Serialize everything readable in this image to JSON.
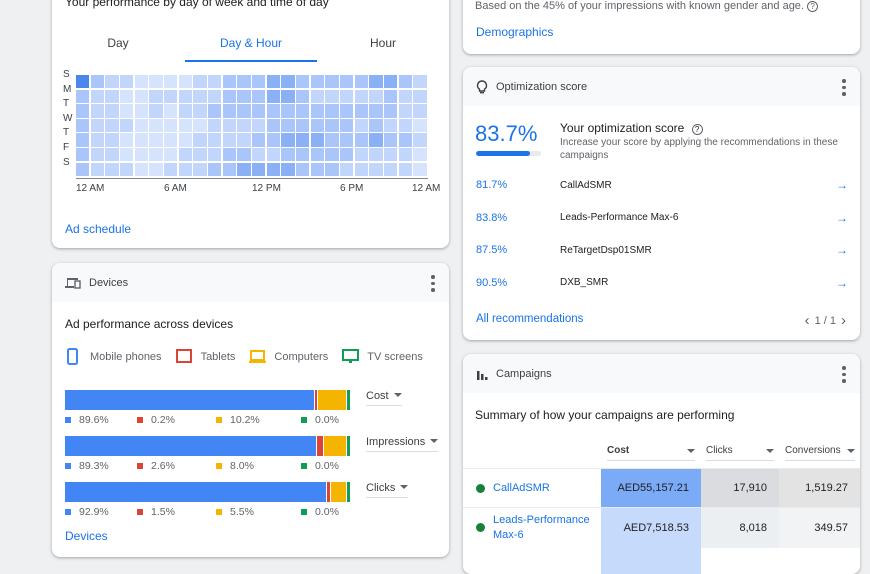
{
  "performance": {
    "title": "Your performance by day of week and time of day",
    "tabs": [
      "Day",
      "Day & Hour",
      "Hour"
    ],
    "active_tab": "Day & Hour",
    "days": [
      "S",
      "M",
      "T",
      "W",
      "T",
      "F",
      "S"
    ],
    "ticks": [
      "12 AM",
      "6 AM",
      "12 PM",
      "6 PM",
      "12 AM"
    ],
    "heatmap_levels": [
      [
        5,
        3,
        2,
        2,
        1,
        1,
        1,
        1,
        2,
        2,
        3,
        3,
        3,
        4,
        4,
        3,
        3,
        3,
        3,
        3,
        4,
        4,
        3,
        2
      ],
      [
        3,
        2,
        2,
        1,
        1,
        2,
        2,
        2,
        2,
        2,
        3,
        3,
        3,
        4,
        4,
        3,
        2,
        2,
        2,
        2,
        2,
        3,
        2,
        2
      ],
      [
        3,
        2,
        2,
        1,
        1,
        2,
        1,
        2,
        2,
        3,
        3,
        3,
        3,
        3,
        3,
        3,
        3,
        3,
        3,
        3,
        3,
        3,
        2,
        2
      ],
      [
        3,
        2,
        2,
        2,
        1,
        1,
        1,
        1,
        1,
        2,
        2,
        2,
        2,
        3,
        3,
        3,
        3,
        3,
        3,
        2,
        3,
        2,
        2,
        1
      ],
      [
        3,
        2,
        2,
        1,
        1,
        1,
        1,
        1,
        2,
        2,
        2,
        2,
        3,
        3,
        4,
        4,
        4,
        3,
        3,
        3,
        4,
        3,
        3,
        2
      ],
      [
        3,
        2,
        2,
        1,
        1,
        1,
        1,
        2,
        2,
        2,
        3,
        3,
        2,
        2,
        3,
        3,
        3,
        3,
        3,
        2,
        2,
        2,
        2,
        1
      ],
      [
        3,
        2,
        2,
        2,
        1,
        1,
        2,
        2,
        2,
        3,
        3,
        4,
        4,
        4,
        4,
        3,
        3,
        3,
        2,
        2,
        2,
        2,
        2,
        1
      ]
    ],
    "link": "Ad schedule"
  },
  "devices": {
    "header": "Devices",
    "subtitle": "Ad performance across devices",
    "legend": [
      {
        "label": "Mobile phones",
        "color": "#4285f4"
      },
      {
        "label": "Tablets",
        "color": "#db4437"
      },
      {
        "label": "Computers",
        "color": "#f4b400"
      },
      {
        "label": "TV screens",
        "color": "#0f9d58"
      }
    ],
    "metrics": [
      {
        "label": "Cost",
        "values": [
          89.6,
          0.2,
          10.2,
          0.0
        ],
        "display": [
          "89.6%",
          "0.2%",
          "10.2%",
          "0.0%"
        ]
      },
      {
        "label": "Impressions",
        "values": [
          89.3,
          2.6,
          8.0,
          0.0
        ],
        "display": [
          "89.3%",
          "2.6%",
          "8.0%",
          "0.0%"
        ]
      },
      {
        "label": "Clicks",
        "values": [
          92.9,
          1.5,
          5.5,
          0.0
        ],
        "display": [
          "92.9%",
          "1.5%",
          "5.5%",
          "0.0%"
        ]
      }
    ],
    "link": "Devices"
  },
  "demographics": {
    "note": "Based on the 45% of your impressions with known gender and age.",
    "link": "Demographics"
  },
  "optimization": {
    "header": "Optimization score",
    "score": "83.7%",
    "score_value": 83.7,
    "title": "Your optimization score",
    "desc": "Increase your score by applying the recommendations in these campaigns",
    "items": [
      {
        "score": "81.7%",
        "name": "CallAdSMR"
      },
      {
        "score": "83.8%",
        "name": "Leads-Performance Max-6"
      },
      {
        "score": "87.5%",
        "name": "ReTargetDsp01SMR"
      },
      {
        "score": "90.5%",
        "name": "DXB_SMR"
      }
    ],
    "link": "All recommendations",
    "pager": "1 / 1"
  },
  "campaigns": {
    "header": "Campaigns",
    "subtitle": "Summary of how your campaigns are performing",
    "columns": [
      "Cost",
      "Clicks",
      "Conversions"
    ],
    "rows": [
      {
        "name": "CallAdSMR",
        "cost": "AED55,157.21",
        "clicks": "17,910",
        "conversions": "1,519.27"
      },
      {
        "name": "Leads-Performance Max-6",
        "cost": "AED7,518.53",
        "clicks": "8,018",
        "conversions": "349.57"
      }
    ]
  }
}
